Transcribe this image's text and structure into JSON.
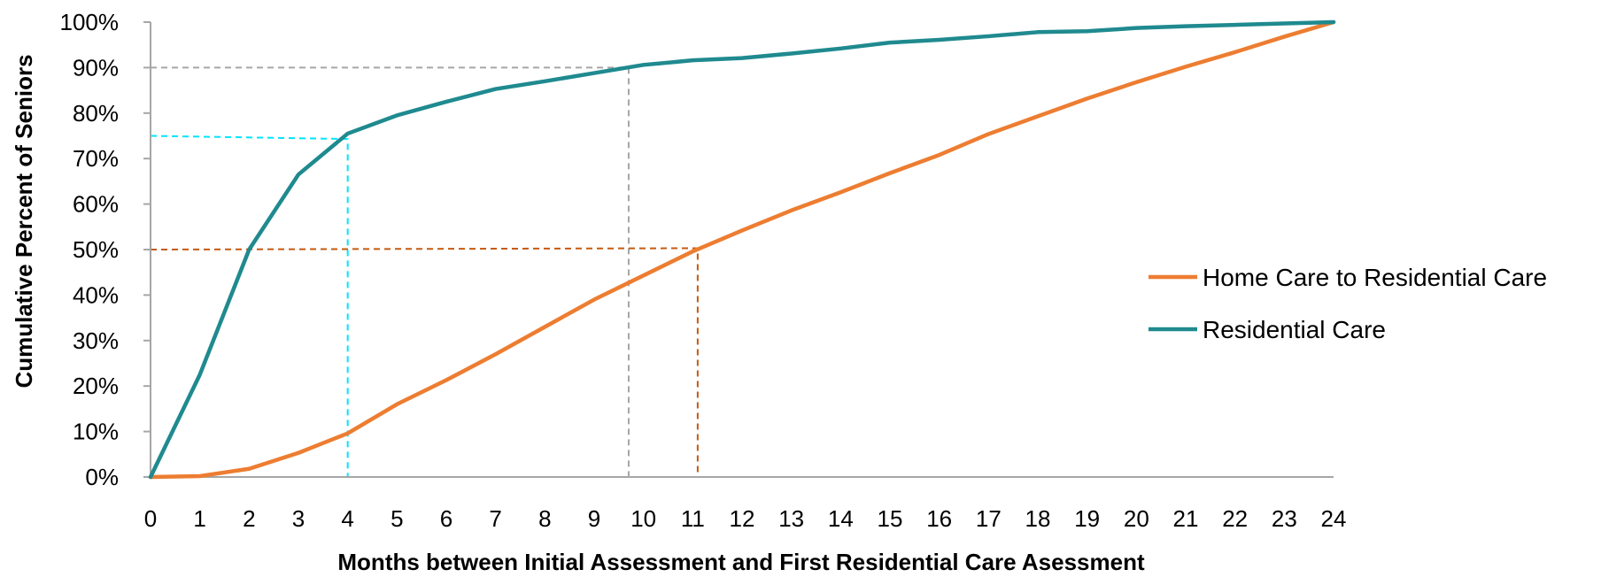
{
  "chart_data": {
    "type": "line",
    "xlabel": "Months between Initial Assessment and First Residential Care Asessment",
    "ylabel": "Cumulative Percent of Seniors",
    "xlim": [
      0,
      24
    ],
    "ylim": [
      0,
      100
    ],
    "x_ticks": [
      "0",
      "1",
      "2",
      "3",
      "4",
      "5",
      "6",
      "7",
      "8",
      "9",
      "10",
      "11",
      "12",
      "13",
      "14",
      "15",
      "16",
      "17",
      "18",
      "19",
      "20",
      "21",
      "22",
      "23",
      "24"
    ],
    "y_ticks": [
      "0%",
      "10%",
      "20%",
      "30%",
      "40%",
      "50%",
      "60%",
      "70%",
      "80%",
      "90%",
      "100%"
    ],
    "grid": false,
    "legend_position": "right",
    "x": [
      0,
      1,
      2,
      3,
      4,
      5,
      6,
      7,
      8,
      9,
      10,
      11,
      12,
      13,
      14,
      15,
      16,
      17,
      18,
      19,
      20,
      21,
      22,
      23,
      24
    ],
    "series": [
      {
        "name": "Home Care to Residential Care",
        "color": "#ed7d31",
        "values": [
          0,
          0.2,
          1.8,
          5.3,
          9.6,
          16,
          21.3,
          27,
          33,
          39,
          44.3,
          49.6,
          54.2,
          58.6,
          62.6,
          66.8,
          70.8,
          75.4,
          79.3,
          83.2,
          86.8,
          90.2,
          93.4,
          96.8,
          100
        ]
      },
      {
        "name": "Residential Care",
        "color": "#1f8a8f",
        "values": [
          0,
          22.5,
          50,
          66.5,
          75.5,
          79.5,
          82.5,
          85.3,
          87,
          88.8,
          90.6,
          91.6,
          92.1,
          93.1,
          94.2,
          95.5,
          96.1,
          96.9,
          97.8,
          98,
          98.7,
          99.1,
          99.4,
          99.7,
          100
        ]
      }
    ],
    "reference_lines": [
      {
        "color": "#00e5ff",
        "points": [
          [
            0,
            75
          ],
          [
            4,
            74.3
          ],
          [
            4,
            0
          ]
        ]
      },
      {
        "color": "#a6a6a6",
        "points": [
          [
            0,
            90
          ],
          [
            9.7,
            90
          ],
          [
            9.7,
            0
          ]
        ]
      },
      {
        "color": "#c55a11",
        "points": [
          [
            0,
            50
          ],
          [
            11.1,
            50.3
          ],
          [
            11.1,
            0
          ]
        ]
      }
    ]
  }
}
